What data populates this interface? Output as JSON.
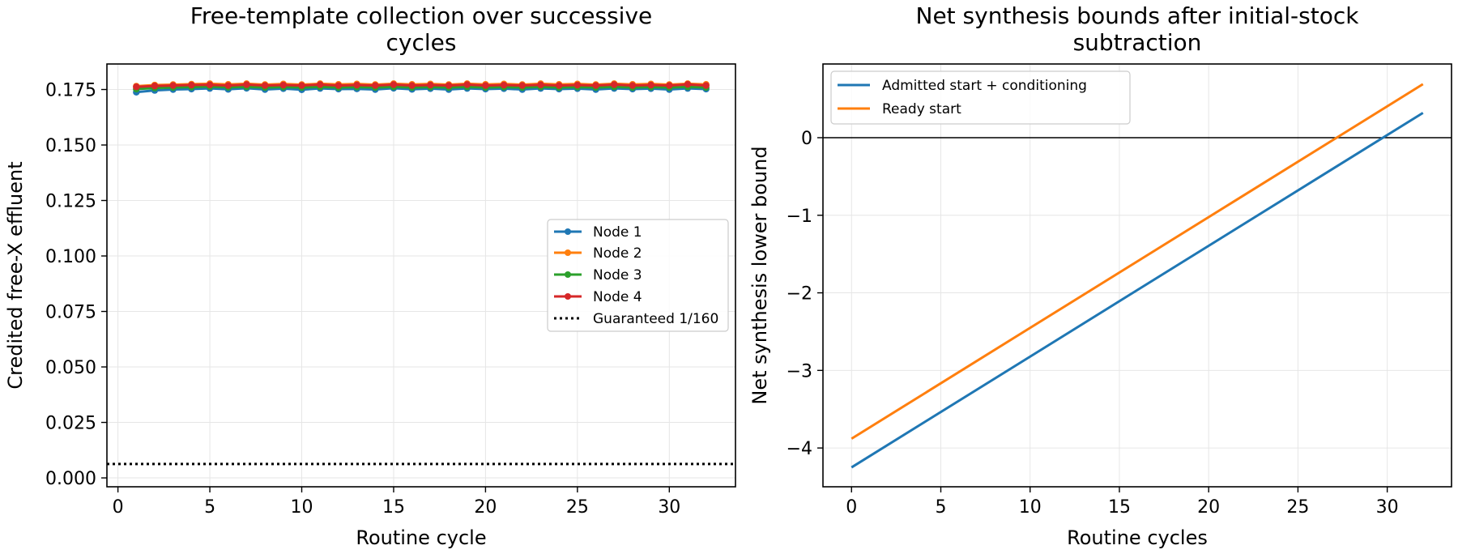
{
  "chart_data": [
    {
      "type": "line",
      "title_lines": [
        "Free-template collection over successive",
        "cycles"
      ],
      "xlabel": "Routine cycle",
      "ylabel": "Credited free-X effluent",
      "xlim": [
        -0.6,
        33.6
      ],
      "ylim": [
        -0.004,
        0.1865
      ],
      "xticks": [
        0,
        5,
        10,
        15,
        20,
        25,
        30
      ],
      "xtick_labels": [
        "0",
        "5",
        "10",
        "15",
        "20",
        "25",
        "30"
      ],
      "yticks": [
        0.0,
        0.025,
        0.05,
        0.075,
        0.1,
        0.125,
        0.15,
        0.175
      ],
      "ytick_labels": [
        "0.000",
        "0.025",
        "0.050",
        "0.075",
        "0.100",
        "0.125",
        "0.150",
        "0.175"
      ],
      "grid": true,
      "legend_position": "center-right",
      "x": [
        1,
        2,
        3,
        4,
        5,
        6,
        7,
        8,
        9,
        10,
        11,
        12,
        13,
        14,
        15,
        16,
        17,
        18,
        19,
        20,
        21,
        22,
        23,
        24,
        25,
        26,
        27,
        28,
        29,
        30,
        31,
        32
      ],
      "series": [
        {
          "name": "Node 1",
          "color": "#1f77b4",
          "marker": "circle",
          "values": [
            0.1738,
            0.1746,
            0.175,
            0.1752,
            0.1755,
            0.1751,
            0.1756,
            0.175,
            0.1754,
            0.1749,
            0.1755,
            0.1752,
            0.1753,
            0.175,
            0.1756,
            0.1751,
            0.1754,
            0.175,
            0.1755,
            0.1752,
            0.1754,
            0.175,
            0.1755,
            0.1752,
            0.1754,
            0.175,
            0.1755,
            0.1752,
            0.1754,
            0.175,
            0.1755,
            0.1752
          ]
        },
        {
          "name": "Node 2",
          "color": "#ff7f0e",
          "marker": "circle",
          "values": [
            0.1765,
            0.177,
            0.1772,
            0.1774,
            0.1776,
            0.1773,
            0.1776,
            0.1772,
            0.1775,
            0.1772,
            0.1776,
            0.1773,
            0.1775,
            0.1772,
            0.1776,
            0.1773,
            0.1775,
            0.1772,
            0.1776,
            0.1773,
            0.1775,
            0.1772,
            0.1776,
            0.1773,
            0.1775,
            0.1772,
            0.1776,
            0.1773,
            0.1775,
            0.1772,
            0.1776,
            0.1773
          ]
        },
        {
          "name": "Node 3",
          "color": "#2ca02c",
          "marker": "circle",
          "values": [
            0.1752,
            0.1757,
            0.1759,
            0.1761,
            0.1763,
            0.176,
            0.1762,
            0.1759,
            0.1761,
            0.1759,
            0.1762,
            0.1759,
            0.1761,
            0.1759,
            0.1762,
            0.1759,
            0.1761,
            0.1759,
            0.1762,
            0.1759,
            0.1761,
            0.1759,
            0.1762,
            0.1759,
            0.1761,
            0.1759,
            0.1762,
            0.1759,
            0.1761,
            0.1759,
            0.1762,
            0.1759
          ]
        },
        {
          "name": "Node 4",
          "color": "#d62728",
          "marker": "circle",
          "values": [
            0.1762,
            0.1766,
            0.1768,
            0.177,
            0.1771,
            0.1768,
            0.1772,
            0.1768,
            0.177,
            0.1768,
            0.1772,
            0.1768,
            0.177,
            0.1768,
            0.1772,
            0.1768,
            0.177,
            0.1768,
            0.1772,
            0.1768,
            0.177,
            0.1768,
            0.1771,
            0.1768,
            0.177,
            0.1768,
            0.1772,
            0.1768,
            0.177,
            0.1768,
            0.1773,
            0.1768
          ]
        }
      ],
      "reference_line": {
        "name": "Guaranteed 1/160",
        "value": 0.00625,
        "style": "dotted",
        "color": "#000000"
      }
    },
    {
      "type": "line",
      "title_lines": [
        "Net synthesis bounds after initial-stock",
        "subtraction"
      ],
      "xlabel": "Routine cycles",
      "ylabel": "Net synthesis lower bound",
      "xlim": [
        -1.6,
        33.6
      ],
      "ylim": [
        -4.5,
        0.95
      ],
      "xticks": [
        0,
        5,
        10,
        15,
        20,
        25,
        30
      ],
      "xtick_labels": [
        "0",
        "5",
        "10",
        "15",
        "20",
        "25",
        "30"
      ],
      "yticks": [
        -4,
        -3,
        -2,
        -1,
        0
      ],
      "ytick_labels": [
        "−4",
        "−3",
        "−2",
        "−1",
        "0"
      ],
      "grid": true,
      "legend_position": "top-left",
      "zero_line": true,
      "series": [
        {
          "name": "Admitted start + conditioning",
          "color": "#1f77b4",
          "x": [
            0,
            32
          ],
          "y": [
            -4.25,
            0.32
          ]
        },
        {
          "name": "Ready start",
          "color": "#ff7f0e",
          "x": [
            0,
            32
          ],
          "y": [
            -3.88,
            0.69
          ]
        }
      ]
    }
  ]
}
